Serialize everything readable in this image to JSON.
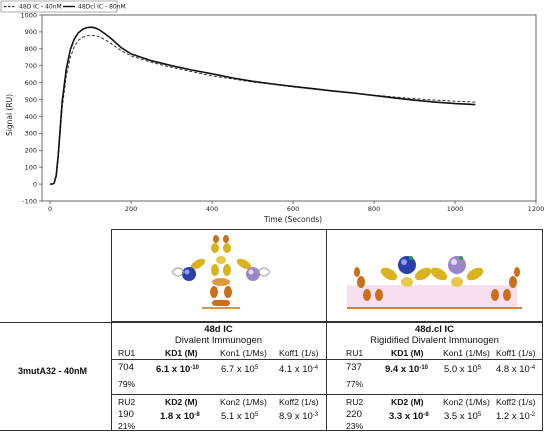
{
  "chart_data": {
    "type": "line",
    "xlabel": "Time (Seconds)",
    "ylabel": "Signal (RU)",
    "xlim": [
      -20,
      1200
    ],
    "ylim": [
      -100,
      1000
    ],
    "xticks": [
      0,
      200,
      400,
      600,
      800,
      1000,
      1200
    ],
    "yticks": [
      -100,
      0,
      100,
      200,
      300,
      400,
      500,
      600,
      700,
      800,
      900,
      1000
    ],
    "grid": false,
    "legend_position": "top-left",
    "series": [
      {
        "name": "48D IC - 40nM",
        "style": "dashed",
        "color": "#333333",
        "x": [
          0,
          5,
          10,
          15,
          20,
          25,
          30,
          40,
          50,
          60,
          70,
          80,
          90,
          100,
          110,
          120,
          135,
          150,
          175,
          200,
          250,
          300,
          350,
          400,
          450,
          500,
          550,
          600,
          650,
          700,
          750,
          800,
          850,
          900,
          950,
          1000,
          1050
        ],
        "y": [
          0,
          0,
          5,
          40,
          150,
          300,
          450,
          640,
          750,
          815,
          850,
          868,
          876,
          880,
          878,
          872,
          855,
          832,
          790,
          758,
          720,
          690,
          665,
          640,
          622,
          604,
          590,
          575,
          562,
          550,
          538,
          526,
          515,
          505,
          497,
          490,
          485
        ]
      },
      {
        "name": "48Dcl IC - 80nM",
        "style": "solid",
        "color": "#111111",
        "x": [
          0,
          5,
          10,
          15,
          20,
          25,
          30,
          40,
          50,
          60,
          70,
          80,
          90,
          100,
          110,
          120,
          135,
          150,
          175,
          200,
          250,
          300,
          350,
          400,
          450,
          500,
          550,
          600,
          650,
          700,
          750,
          800,
          850,
          900,
          950,
          1000,
          1050
        ],
        "y": [
          0,
          0,
          5,
          50,
          170,
          330,
          490,
          680,
          795,
          860,
          895,
          915,
          925,
          928,
          925,
          915,
          890,
          862,
          808,
          770,
          730,
          700,
          675,
          652,
          628,
          608,
          592,
          578,
          564,
          550,
          538,
          524,
          510,
          496,
          485,
          476,
          470
        ]
      }
    ]
  },
  "table": {
    "row_label": "3mutA32 - 40nM",
    "left": {
      "title": "48d IC",
      "subtitle": "Divalent Immunogen",
      "r1": {
        "ru_label": "RU1",
        "ru_value": "704",
        "pct": "79%",
        "kd_label": "KD1 (M)",
        "kd_value": "6.1 x 10",
        "kd_exp": "-10",
        "kon_label": "Kon1 (1/Ms)",
        "kon_value": "6.7 x 10",
        "kon_exp": "5",
        "koff_label": "Koff1 (1/s)",
        "koff_value": "4.1 x 10",
        "koff_exp": "-4"
      },
      "r2": {
        "ru_label": "RU2",
        "ru_value": "190",
        "pct": "21%",
        "kd_label": "KD2 (M)",
        "kd_value": "1.8 x 10",
        "kd_exp": "-8",
        "kon_label": "Kon2 (1/Ms)",
        "kon_value": "5.1 x 10",
        "kon_exp": "5",
        "koff_label": "Koff2 (1/s)",
        "koff_value": "8.9 x 10",
        "koff_exp": "-3"
      }
    },
    "right": {
      "title": "48d.cl IC",
      "subtitle": "Rigidified Divalent Immunogen",
      "r1": {
        "ru_label": "RU1",
        "ru_value": "737",
        "pct": "77%",
        "kd_label": "KD1 (M)",
        "kd_value": "9.4 x 10",
        "kd_exp": "-10",
        "kon_label": "Kon1 (1/Ms)",
        "kon_value": "5.0 x 10",
        "kon_exp": "5",
        "koff_label": "Koff1 (1/s)",
        "koff_value": "4.8 x 10",
        "koff_exp": "-4"
      },
      "r2": {
        "ru_label": "RU2",
        "ru_value": "220",
        "pct": "23%",
        "kd_label": "KD2 (M)",
        "kd_value": "3.3 x 10",
        "kd_exp": "-8",
        "kon_label": "Kon2 (1/Ms)",
        "kon_value": "3.5 x 10",
        "kon_exp": "5",
        "koff_label": "Koff2 (1/s)",
        "koff_value": "1.2 x 10",
        "koff_exp": "-2"
      }
    }
  },
  "colors": {
    "antibody_gold": "#d9b21e",
    "antibody_orange": "#c8701a",
    "sphere_blue": "#2a3fa8",
    "sphere_purple": "#9a86c8",
    "membrane_pink": "#f3c9e6"
  }
}
